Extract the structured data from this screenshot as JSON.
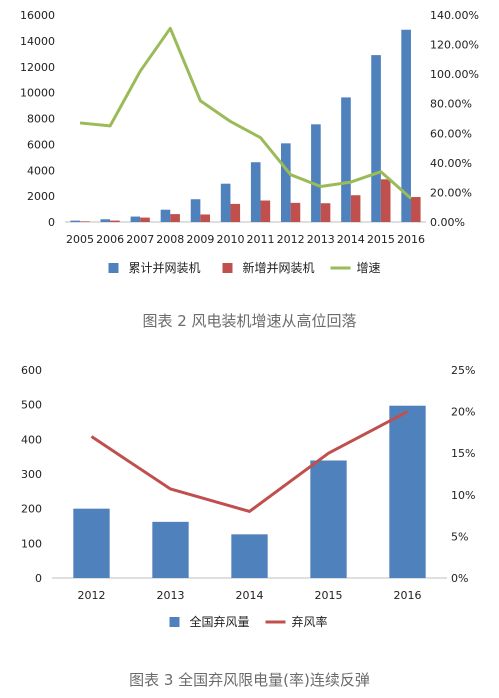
{
  "chart_data": [
    {
      "type": "bar",
      "categories": [
        "2005",
        "2006",
        "2007",
        "2008",
        "2009",
        "2010",
        "2011",
        "2012",
        "2013",
        "2014",
        "2015",
        "2016"
      ],
      "series": [
        {
          "name": "累计并网装机",
          "kind": "bar",
          "axis": "left",
          "color": "#4f81bd",
          "values": [
            105,
            210,
            420,
            950,
            1760,
            2960,
            4620,
            6080,
            7550,
            9630,
            12900,
            14860
          ]
        },
        {
          "name": "新增并网装机",
          "kind": "bar",
          "axis": "left",
          "color": "#c0504d",
          "values": [
            50,
            110,
            340,
            610,
            580,
            1400,
            1660,
            1480,
            1450,
            2070,
            3300,
            1930
          ]
        },
        {
          "name": "增速",
          "kind": "line",
          "axis": "right",
          "color": "#9bbb59",
          "values": [
            0.67,
            0.65,
            1.02,
            1.31,
            0.82,
            0.68,
            0.57,
            0.32,
            0.24,
            0.27,
            0.34,
            0.16
          ]
        }
      ],
      "ylim": [
        0,
        16000
      ],
      "yticks": [
        "0",
        "2000",
        "4000",
        "6000",
        "8000",
        "10000",
        "12000",
        "14000",
        "16000"
      ],
      "y2lim": [
        0,
        1.4
      ],
      "y2ticks": [
        "0.00%",
        "20.00%",
        "40.00%",
        "60.00%",
        "80.00%",
        "100.00%",
        "120.00%",
        "140.00%"
      ],
      "legend_position": "bottom",
      "grid": false,
      "caption": "图表 2 风电装机增速从高位回落"
    },
    {
      "type": "bar",
      "categories": [
        "2012",
        "2013",
        "2014",
        "2015",
        "2016"
      ],
      "series": [
        {
          "name": "全国弃风量",
          "kind": "bar",
          "axis": "left",
          "color": "#4f81bd",
          "values": [
            200,
            162,
            126,
            339,
            497
          ]
        },
        {
          "name": "弃风率",
          "kind": "line",
          "axis": "right",
          "color": "#c0504d",
          "values": [
            0.17,
            0.107,
            0.08,
            0.15,
            0.2
          ]
        }
      ],
      "ylim": [
        0,
        600
      ],
      "yticks": [
        "0",
        "100",
        "200",
        "300",
        "400",
        "500",
        "600"
      ],
      "y2lim": [
        0,
        0.25
      ],
      "y2ticks": [
        "0%",
        "5%",
        "10%",
        "15%",
        "20%",
        "25%"
      ],
      "legend_position": "bottom",
      "grid": false,
      "caption": "图表 3 全国弃风限电量(率)连续反弹"
    }
  ]
}
